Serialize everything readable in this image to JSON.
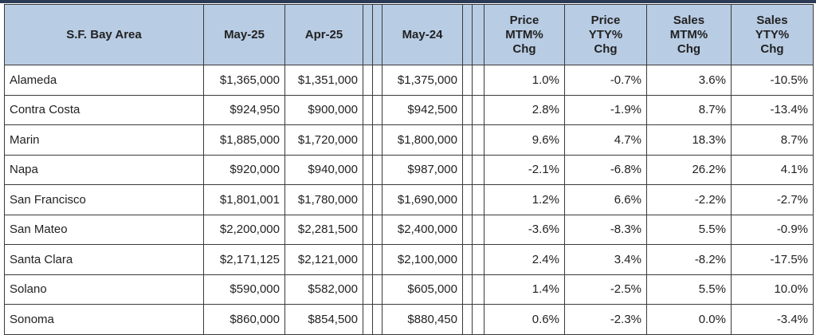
{
  "table": {
    "header": [
      "S.F. Bay Area",
      "May-25",
      "Apr-25",
      "May-24",
      "Price MTM% Chg",
      "Price YTY% Chg",
      "Sales MTM% Chg",
      "Sales YTY% Chg"
    ],
    "rows": [
      [
        "Alameda",
        "$1,365,000",
        "$1,351,000",
        "$1,375,000",
        "1.0%",
        "-0.7%",
        "3.6%",
        "-10.5%"
      ],
      [
        "Contra Costa",
        "$924,950",
        "$900,000",
        "$942,500",
        "2.8%",
        "-1.9%",
        "8.7%",
        "-13.4%"
      ],
      [
        "Marin",
        "$1,885,000",
        "$1,720,000",
        "$1,800,000",
        "9.6%",
        "4.7%",
        "18.3%",
        "8.7%"
      ],
      [
        "Napa",
        "$920,000",
        "$940,000",
        "$987,000",
        "-2.1%",
        "-6.8%",
        "26.2%",
        "4.1%"
      ],
      [
        "San Francisco",
        "$1,801,001",
        "$1,780,000",
        "$1,690,000",
        "1.2%",
        "6.6%",
        "-2.2%",
        "-2.7%"
      ],
      [
        "San Mateo",
        "$2,200,000",
        "$2,281,500",
        "$2,400,000",
        "-3.6%",
        "-8.3%",
        "5.5%",
        "-0.9%"
      ],
      [
        "Santa Clara",
        "$2,171,125",
        "$2,121,000",
        "$2,100,000",
        "2.4%",
        "3.4%",
        "-8.2%",
        "-17.5%"
      ],
      [
        "Solano",
        "$590,000",
        "$582,000",
        "$605,000",
        "1.4%",
        "-2.5%",
        "5.5%",
        "10.0%"
      ],
      [
        "Sonoma",
        "$860,000",
        "$854,500",
        "$880,450",
        "0.6%",
        "-2.3%",
        "0.0%",
        "-3.4%"
      ]
    ]
  }
}
